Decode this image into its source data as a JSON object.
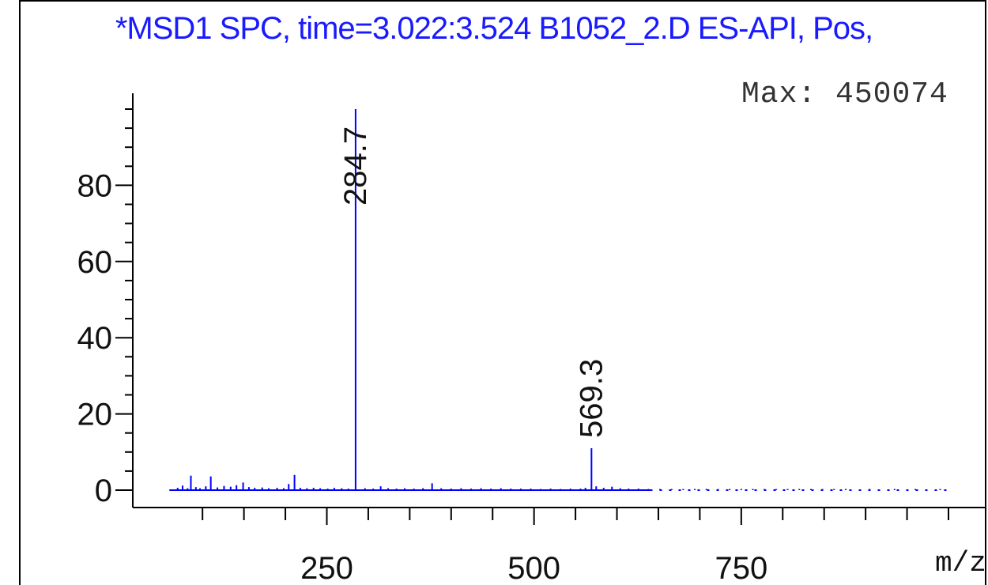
{
  "chart_data": {
    "type": "bar",
    "title": "*MSD1 SPC, time=3.022:3.524 B1052_2.D ES-API, Pos,",
    "max_label": "Max:",
    "max_value": "450074",
    "xlabel": "m/z",
    "ylabel": "",
    "xlim": [
      55,
      1000
    ],
    "ylim": [
      0,
      100
    ],
    "x_ticks_major": [
      250,
      500,
      750
    ],
    "x_ticks_minor_step": 50,
    "y_ticks_major": [
      0,
      20,
      40,
      60,
      80
    ],
    "y_ticks_minor_step": 5,
    "grid": false,
    "color": "#0000ff",
    "peaks": [
      {
        "x": 284.7,
        "y": 100,
        "label": "284.7"
      },
      {
        "x": 569.3,
        "y": 11,
        "label": "569.3"
      }
    ],
    "noise": [
      {
        "x": 70,
        "y": 0.6
      },
      {
        "x": 76,
        "y": 1.2
      },
      {
        "x": 82,
        "y": 0.5
      },
      {
        "x": 86,
        "y": 3.8
      },
      {
        "x": 92,
        "y": 0.8
      },
      {
        "x": 97,
        "y": 0.5
      },
      {
        "x": 104,
        "y": 1.0
      },
      {
        "x": 110,
        "y": 3.6
      },
      {
        "x": 118,
        "y": 0.7
      },
      {
        "x": 126,
        "y": 1.1
      },
      {
        "x": 134,
        "y": 0.9
      },
      {
        "x": 141,
        "y": 1.3
      },
      {
        "x": 149,
        "y": 2.0
      },
      {
        "x": 156,
        "y": 0.8
      },
      {
        "x": 163,
        "y": 0.6
      },
      {
        "x": 172,
        "y": 0.7
      },
      {
        "x": 180,
        "y": 0.5
      },
      {
        "x": 190,
        "y": 0.6
      },
      {
        "x": 198,
        "y": 0.5
      },
      {
        "x": 204,
        "y": 1.6
      },
      {
        "x": 211,
        "y": 4.0
      },
      {
        "x": 218,
        "y": 0.6
      },
      {
        "x": 226,
        "y": 0.5
      },
      {
        "x": 234,
        "y": 0.6
      },
      {
        "x": 242,
        "y": 0.5
      },
      {
        "x": 251,
        "y": 0.4
      },
      {
        "x": 259,
        "y": 0.6
      },
      {
        "x": 268,
        "y": 0.5
      },
      {
        "x": 276,
        "y": 0.4
      },
      {
        "x": 296,
        "y": 0.5
      },
      {
        "x": 306,
        "y": 0.4
      },
      {
        "x": 315,
        "y": 1.0
      },
      {
        "x": 324,
        "y": 0.5
      },
      {
        "x": 334,
        "y": 0.4
      },
      {
        "x": 344,
        "y": 0.5
      },
      {
        "x": 355,
        "y": 0.4
      },
      {
        "x": 366,
        "y": 0.5
      },
      {
        "x": 377,
        "y": 1.8
      },
      {
        "x": 388,
        "y": 0.5
      },
      {
        "x": 400,
        "y": 0.4
      },
      {
        "x": 412,
        "y": 0.5
      },
      {
        "x": 424,
        "y": 0.4
      },
      {
        "x": 436,
        "y": 0.5
      },
      {
        "x": 448,
        "y": 0.4
      },
      {
        "x": 460,
        "y": 0.5
      },
      {
        "x": 472,
        "y": 0.4
      },
      {
        "x": 484,
        "y": 0.4
      },
      {
        "x": 496,
        "y": 0.4
      },
      {
        "x": 508,
        "y": 0.3
      },
      {
        "x": 520,
        "y": 0.4
      },
      {
        "x": 532,
        "y": 0.3
      },
      {
        "x": 544,
        "y": 0.4
      },
      {
        "x": 556,
        "y": 0.4
      },
      {
        "x": 562,
        "y": 0.6
      },
      {
        "x": 575,
        "y": 1.0
      },
      {
        "x": 584,
        "y": 0.6
      },
      {
        "x": 594,
        "y": 0.9
      },
      {
        "x": 604,
        "y": 0.5
      },
      {
        "x": 614,
        "y": 0.4
      },
      {
        "x": 626,
        "y": 0.4
      },
      {
        "x": 638,
        "y": 0.3
      },
      {
        "x": 652,
        "y": 0.3
      },
      {
        "x": 666,
        "y": 0.3
      },
      {
        "x": 680,
        "y": 0.3
      },
      {
        "x": 694,
        "y": 0.3
      },
      {
        "x": 708,
        "y": 0.3
      },
      {
        "x": 722,
        "y": 0.3
      },
      {
        "x": 736,
        "y": 0.3
      },
      {
        "x": 750,
        "y": 0.3
      },
      {
        "x": 764,
        "y": 0.3
      },
      {
        "x": 778,
        "y": 0.3
      },
      {
        "x": 792,
        "y": 0.3
      },
      {
        "x": 806,
        "y": 0.3
      },
      {
        "x": 820,
        "y": 0.3
      },
      {
        "x": 834,
        "y": 0.3
      },
      {
        "x": 848,
        "y": 0.3
      },
      {
        "x": 862,
        "y": 0.3
      },
      {
        "x": 876,
        "y": 0.3
      },
      {
        "x": 905,
        "y": 0.3
      },
      {
        "x": 935,
        "y": 0.3
      },
      {
        "x": 960,
        "y": 0.3
      },
      {
        "x": 990,
        "y": 0.3
      }
    ]
  }
}
